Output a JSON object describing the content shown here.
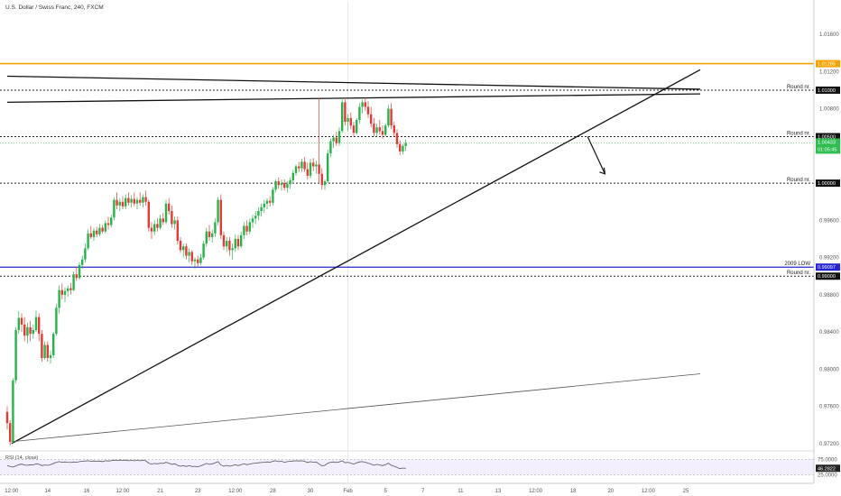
{
  "header": {
    "title": "U.S. Dollar / Swiss Franc, 240, FXCM"
  },
  "colors": {
    "up": "#26a69a",
    "up_fill": "#26b34a",
    "down": "#e53935",
    "price_tag": "#2ebd4f",
    "orange": "#f5a300",
    "blue": "#2424d6",
    "black": "#111111",
    "grid": "#d9d9d9",
    "rsi_line": "#555555"
  },
  "levels": [
    {
      "label": "",
      "price": 1.01285,
      "tag": "1.01285",
      "style": "orange"
    },
    {
      "label": "Round nr.",
      "price": 1.01,
      "tag": "1.01000",
      "style": "dotted"
    },
    {
      "label": "Round nr.",
      "price": 1.005,
      "tag": "1.00500",
      "style": "dotted"
    },
    {
      "label": "Round nr.",
      "price": 1.0,
      "tag": "1.00000",
      "style": "dotted"
    },
    {
      "label": "2009 LOW",
      "price": 0.99097,
      "tag": "0.99097",
      "style": "blue"
    },
    {
      "label": "Round nr.",
      "price": 0.99,
      "tag": "0.99000",
      "style": "dotted"
    }
  ],
  "current_price": {
    "price": 1.00433,
    "tag": "1.00433",
    "countdown": "01:05:45"
  },
  "rsi": {
    "label": "RSI (14, close)",
    "value": "46.2822",
    "ticks": [
      "75.0000",
      "25.0000"
    ]
  },
  "chart_data": {
    "type": "candlestick",
    "title": "U.S. Dollar / Swiss Franc, 240, FXCM",
    "y_axis": {
      "ylim": [
        0.9715,
        1.0195
      ],
      "ticks": [
        "1.01600",
        "1.01200",
        "1.00800",
        "1.00400",
        "1.00000",
        "0.99600",
        "0.99200",
        "0.98800",
        "0.98400",
        "0.98000",
        "0.97600",
        "0.97200"
      ],
      "tick_values": [
        1.016,
        1.012,
        1.008,
        1.004,
        1.0,
        0.996,
        0.992,
        0.988,
        0.984,
        0.98,
        0.976,
        0.972
      ]
    },
    "x_axis": {
      "ticks": [
        "12:00",
        "14",
        "16",
        "12:00",
        "21",
        "23",
        "12:00",
        "28",
        "30",
        "Feb",
        "5",
        "7",
        "11",
        "13",
        "12:00",
        "18",
        "20",
        "12:00",
        "25"
      ],
      "tick_index": [
        1.5,
        14,
        27.5,
        40,
        53,
        66,
        79,
        92,
        105,
        118,
        131,
        144,
        157,
        170,
        183,
        196,
        209,
        222,
        235
      ]
    },
    "candles": [
      [
        0.9754,
        0.976,
        0.9735,
        0.9742
      ],
      [
        0.9742,
        0.9745,
        0.9718,
        0.9722
      ],
      [
        0.9722,
        0.979,
        0.972,
        0.9788
      ],
      [
        0.9788,
        0.9845,
        0.9785,
        0.9842
      ],
      [
        0.9842,
        0.9862,
        0.9838,
        0.9855
      ],
      [
        0.9855,
        0.986,
        0.984,
        0.9848
      ],
      [
        0.9848,
        0.9856,
        0.983,
        0.9836
      ],
      [
        0.9836,
        0.985,
        0.9828,
        0.9845
      ],
      [
        0.9845,
        0.9852,
        0.983,
        0.9838
      ],
      [
        0.9838,
        0.9848,
        0.9833,
        0.9842
      ],
      [
        0.9842,
        0.9863,
        0.984,
        0.9856
      ],
      [
        0.9856,
        0.986,
        0.983,
        0.9838
      ],
      [
        0.9838,
        0.9842,
        0.9808,
        0.9812
      ],
      [
        0.9812,
        0.983,
        0.981,
        0.9826
      ],
      [
        0.9826,
        0.983,
        0.9808,
        0.9812
      ],
      [
        0.9812,
        0.982,
        0.9806,
        0.9815
      ],
      [
        0.9815,
        0.984,
        0.9812,
        0.9838
      ],
      [
        0.9838,
        0.987,
        0.9836,
        0.9866
      ],
      [
        0.9866,
        0.989,
        0.986,
        0.9885
      ],
      [
        0.9885,
        0.9892,
        0.9875,
        0.988
      ],
      [
        0.988,
        0.9888,
        0.9872,
        0.9884
      ],
      [
        0.9884,
        0.989,
        0.9878,
        0.9887
      ],
      [
        0.9887,
        0.9893,
        0.988,
        0.9885
      ],
      [
        0.9885,
        0.9905,
        0.9884,
        0.9902
      ],
      [
        0.9902,
        0.991,
        0.9895,
        0.9898
      ],
      [
        0.9898,
        0.9915,
        0.9896,
        0.9912
      ],
      [
        0.9912,
        0.9922,
        0.9908,
        0.9918
      ],
      [
        0.9918,
        0.9935,
        0.9915,
        0.993
      ],
      [
        0.993,
        0.995,
        0.9928,
        0.9946
      ],
      [
        0.9946,
        0.9954,
        0.994,
        0.9942
      ],
      [
        0.9942,
        0.9952,
        0.9938,
        0.9949
      ],
      [
        0.9949,
        0.9953,
        0.9942,
        0.9945
      ],
      [
        0.9945,
        0.9956,
        0.9943,
        0.9952
      ],
      [
        0.9952,
        0.9955,
        0.9946,
        0.9948
      ],
      [
        0.9948,
        0.996,
        0.9946,
        0.9957
      ],
      [
        0.9957,
        0.9964,
        0.995,
        0.9955
      ],
      [
        0.9955,
        0.9966,
        0.9952,
        0.9963
      ],
      [
        0.9963,
        0.9985,
        0.996,
        0.9982
      ],
      [
        0.9982,
        0.999,
        0.9972,
        0.9976
      ],
      [
        0.9976,
        0.9984,
        0.997,
        0.998
      ],
      [
        0.998,
        0.9986,
        0.9972,
        0.9975
      ],
      [
        0.9975,
        0.9988,
        0.9972,
        0.9984
      ],
      [
        0.9984,
        0.999,
        0.9976,
        0.9979
      ],
      [
        0.9979,
        0.9987,
        0.9974,
        0.9983
      ],
      [
        0.9983,
        0.999,
        0.9975,
        0.9978
      ],
      [
        0.9978,
        0.9985,
        0.9972,
        0.9982
      ],
      [
        0.9982,
        0.999,
        0.9976,
        0.9979
      ],
      [
        0.9979,
        0.9988,
        0.9974,
        0.9985
      ],
      [
        0.9985,
        0.9992,
        0.9976,
        0.998
      ],
      [
        0.998,
        0.9982,
        0.9948,
        0.9952
      ],
      [
        0.9952,
        0.9958,
        0.994,
        0.9948
      ],
      [
        0.9948,
        0.996,
        0.9944,
        0.9956
      ],
      [
        0.9956,
        0.9962,
        0.9948,
        0.9952
      ],
      [
        0.9952,
        0.9966,
        0.995,
        0.9962
      ],
      [
        0.9962,
        0.9968,
        0.9955,
        0.9958
      ],
      [
        0.9958,
        0.9982,
        0.9956,
        0.9978
      ],
      [
        0.9978,
        0.9984,
        0.9966,
        0.997
      ],
      [
        0.997,
        0.9976,
        0.9952,
        0.9956
      ],
      [
        0.9956,
        0.9964,
        0.995,
        0.996
      ],
      [
        0.996,
        0.9964,
        0.9934,
        0.9938
      ],
      [
        0.9938,
        0.9942,
        0.9925,
        0.9928
      ],
      [
        0.9928,
        0.9935,
        0.992,
        0.9932
      ],
      [
        0.9932,
        0.9935,
        0.9918,
        0.9922
      ],
      [
        0.9922,
        0.993,
        0.9915,
        0.9926
      ],
      [
        0.9926,
        0.9928,
        0.9912,
        0.9916
      ],
      [
        0.9916,
        0.992,
        0.9908,
        0.9918
      ],
      [
        0.9918,
        0.9922,
        0.991,
        0.9914
      ],
      [
        0.9914,
        0.9924,
        0.9912,
        0.992
      ],
      [
        0.992,
        0.9938,
        0.9918,
        0.9935
      ],
      [
        0.9935,
        0.9952,
        0.9932,
        0.9948
      ],
      [
        0.9948,
        0.9955,
        0.9938,
        0.9942
      ],
      [
        0.9942,
        0.995,
        0.9936,
        0.9946
      ],
      [
        0.9946,
        0.9962,
        0.9942,
        0.9958
      ],
      [
        0.9958,
        0.9985,
        0.9955,
        0.9982
      ],
      [
        0.9982,
        0.9988,
        0.994,
        0.9944
      ],
      [
        0.9944,
        0.9948,
        0.9928,
        0.9932
      ],
      [
        0.9932,
        0.9942,
        0.9926,
        0.9938
      ],
      [
        0.9938,
        0.9942,
        0.9922,
        0.9928
      ],
      [
        0.9928,
        0.9935,
        0.9918,
        0.993
      ],
      [
        0.993,
        0.9945,
        0.9926,
        0.994
      ],
      [
        0.994,
        0.9944,
        0.9928,
        0.9932
      ],
      [
        0.9932,
        0.9948,
        0.993,
        0.9944
      ],
      [
        0.9944,
        0.9958,
        0.994,
        0.9954
      ],
      [
        0.9954,
        0.996,
        0.9944,
        0.9948
      ],
      [
        0.9948,
        0.9962,
        0.9945,
        0.9958
      ],
      [
        0.9958,
        0.9966,
        0.9952,
        0.9962
      ],
      [
        0.9962,
        0.997,
        0.9956,
        0.9965
      ],
      [
        0.9965,
        0.9974,
        0.996,
        0.997
      ],
      [
        0.997,
        0.9978,
        0.9964,
        0.9974
      ],
      [
        0.9974,
        0.9982,
        0.9968,
        0.9978
      ],
      [
        0.9978,
        0.9984,
        0.9972,
        0.9981
      ],
      [
        0.9981,
        0.9986,
        0.9975,
        0.9979
      ],
      [
        0.9979,
        0.9996,
        0.9976,
        0.9993
      ],
      [
        0.9993,
        1.0004,
        0.999,
        1.0002
      ],
      [
        1.0002,
        1.0006,
        0.9994,
        0.9998
      ],
      [
        0.9998,
        1.0004,
        0.9992,
        1.0
      ],
      [
        1.0,
        1.0004,
        0.9992,
        0.9995
      ],
      [
        0.9995,
        1.0002,
        0.999,
        0.9999
      ],
      [
        0.9999,
        1.0006,
        0.9994,
        1.0003
      ],
      [
        1.0003,
        1.0014,
        1.0,
        1.0011
      ],
      [
        1.0011,
        1.002,
        1.0008,
        1.0018
      ],
      [
        1.0018,
        1.0023,
        1.0012,
        1.0016
      ],
      [
        1.0016,
        1.0026,
        1.0012,
        1.0023
      ],
      [
        1.0023,
        1.0028,
        1.0012,
        1.0015
      ],
      [
        1.0015,
        1.0022,
        1.0004,
        1.0008
      ],
      [
        1.0008,
        1.0026,
        1.0005,
        1.0022
      ],
      [
        1.0022,
        1.0027,
        1.0013,
        1.0018
      ],
      [
        1.0018,
        1.0024,
        1.001,
        1.002
      ],
      [
        1.002,
        1.0092,
        1.0,
        1.001
      ],
      [
        1.001,
        1.0016,
        0.9993,
        0.9998
      ],
      [
        0.9998,
        1.0004,
        0.9993,
        1.0002
      ],
      [
        1.0002,
        1.0036,
        1.0,
        1.0032
      ],
      [
        1.0032,
        1.0048,
        1.0028,
        1.0045
      ],
      [
        1.0045,
        1.0052,
        1.0038,
        1.0049
      ],
      [
        1.0049,
        1.0055,
        1.004,
        1.0043
      ],
      [
        1.0043,
        1.006,
        1.004,
        1.0056
      ],
      [
        1.0056,
        1.009,
        1.0054,
        1.0087
      ],
      [
        1.0087,
        1.009,
        1.0062,
        1.0066
      ],
      [
        1.0066,
        1.0074,
        1.0056,
        1.007
      ],
      [
        1.007,
        1.0076,
        1.0058,
        1.0062
      ],
      [
        1.0062,
        1.0066,
        1.005,
        1.0054
      ],
      [
        1.0054,
        1.007,
        1.0052,
        1.0068
      ],
      [
        1.0068,
        1.0086,
        1.0064,
        1.0082
      ],
      [
        1.0082,
        1.009,
        1.0075,
        1.0087
      ],
      [
        1.0087,
        1.0092,
        1.0078,
        1.0082
      ],
      [
        1.0082,
        1.0088,
        1.007,
        1.0074
      ],
      [
        1.0074,
        1.0082,
        1.006,
        1.0064
      ],
      [
        1.0064,
        1.007,
        1.005,
        1.0054
      ],
      [
        1.0054,
        1.0064,
        1.005,
        1.006
      ],
      [
        1.006,
        1.0068,
        1.0052,
        1.0056
      ],
      [
        1.0056,
        1.0062,
        1.0048,
        1.0052
      ],
      [
        1.0052,
        1.0064,
        1.005,
        1.0062
      ],
      [
        1.0062,
        1.0084,
        1.006,
        1.008
      ],
      [
        1.008,
        1.0086,
        1.0058,
        1.0062
      ],
      [
        1.0062,
        1.0066,
        1.005,
        1.0054
      ],
      [
        1.0054,
        1.0058,
        1.0038,
        1.0042
      ],
      [
        1.0042,
        1.0046,
        1.003,
        1.0034
      ],
      [
        1.0034,
        1.0042,
        1.0031,
        1.004
      ],
      [
        1.004,
        1.0047,
        1.0035,
        1.0043
      ]
    ],
    "rsi_values": [
      55,
      52,
      50,
      54,
      58,
      60,
      57,
      56,
      58,
      57,
      61,
      59,
      55,
      57,
      56,
      58,
      62,
      66,
      68,
      66,
      67,
      66,
      65,
      67,
      66,
      68,
      69,
      70,
      71,
      69,
      70,
      69,
      70,
      68,
      71,
      70,
      71,
      73,
      72,
      73,
      72,
      73,
      71,
      72,
      71,
      72,
      71,
      72,
      71,
      63,
      60,
      62,
      61,
      63,
      62,
      66,
      63,
      59,
      61,
      56,
      53,
      55,
      52,
      55,
      52,
      53,
      51,
      54,
      58,
      62,
      59,
      61,
      64,
      68,
      57,
      53,
      56,
      53,
      55,
      58,
      55,
      58,
      61,
      58,
      60,
      62,
      63,
      64,
      65,
      66,
      67,
      66,
      69,
      71,
      68,
      69,
      66,
      68,
      69,
      70,
      71,
      70,
      71,
      69,
      65,
      68,
      66,
      67,
      60,
      54,
      56,
      63,
      66,
      67,
      65,
      67,
      71,
      64,
      66,
      63,
      60,
      64,
      67,
      68,
      66,
      63,
      60,
      56,
      59,
      57,
      55,
      58,
      63,
      56,
      53,
      49,
      45,
      47,
      46.3
    ],
    "trendlines": [
      {
        "name": "rising-support",
        "from": [
          1.5,
          0.972
        ],
        "to": [
          240,
          1.0122
        ]
      },
      {
        "name": "lower-channel",
        "from": [
          1.5,
          0.9722
        ],
        "to": [
          240,
          0.9795
        ]
      },
      {
        "name": "upper-resistance-a",
        "from": [
          0,
          1.0115
        ],
        "to": [
          240,
          1.0101
        ]
      },
      {
        "name": "upper-resistance-b",
        "from": [
          0,
          1.0087
        ],
        "to": [
          240,
          1.0096
        ]
      }
    ],
    "projection": {
      "from": [
        201,
        1.005
      ],
      "to": [
        207,
        1.001
      ]
    }
  }
}
